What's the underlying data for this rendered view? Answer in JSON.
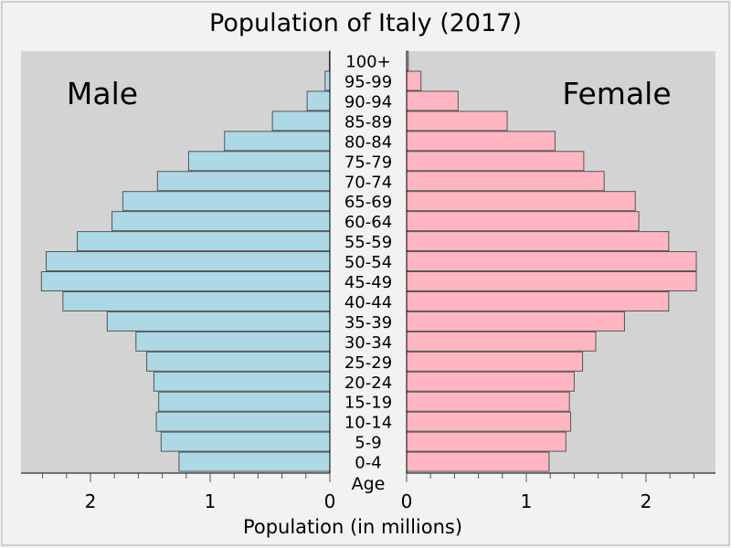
{
  "chart_data": {
    "type": "bar",
    "title": "Population of Italy (2017)",
    "xlabel": "Population (in millions)",
    "age_label": "Age",
    "xlim": [
      0,
      2.6
    ],
    "x_ticks": [
      2,
      1,
      0
    ],
    "x_ticks_right": [
      0,
      1,
      2
    ],
    "categories": [
      "0-4",
      "5-9",
      "10-14",
      "15-19",
      "20-24",
      "25-29",
      "30-34",
      "35-39",
      "40-44",
      "45-49",
      "50-54",
      "55-59",
      "60-64",
      "65-69",
      "70-74",
      "75-79",
      "80-84",
      "85-89",
      "90-94",
      "95-99",
      "100+"
    ],
    "series": [
      {
        "name": "Male",
        "color": "#add8e6",
        "values": [
          1.26,
          1.41,
          1.45,
          1.43,
          1.47,
          1.53,
          1.62,
          1.86,
          2.23,
          2.41,
          2.37,
          2.11,
          1.82,
          1.73,
          1.44,
          1.18,
          0.88,
          0.48,
          0.19,
          0.04,
          0.004
        ]
      },
      {
        "name": "Female",
        "color": "#ffb6c1",
        "values": [
          1.19,
          1.33,
          1.37,
          1.36,
          1.4,
          1.47,
          1.58,
          1.82,
          2.19,
          2.42,
          2.42,
          2.19,
          1.94,
          1.91,
          1.65,
          1.48,
          1.24,
          0.84,
          0.43,
          0.12,
          0.014
        ]
      }
    ],
    "grid": false
  },
  "colors": {
    "background": "#f2f2f2",
    "plot_area": "#d3d3d3",
    "bar_stroke": "#555555"
  }
}
